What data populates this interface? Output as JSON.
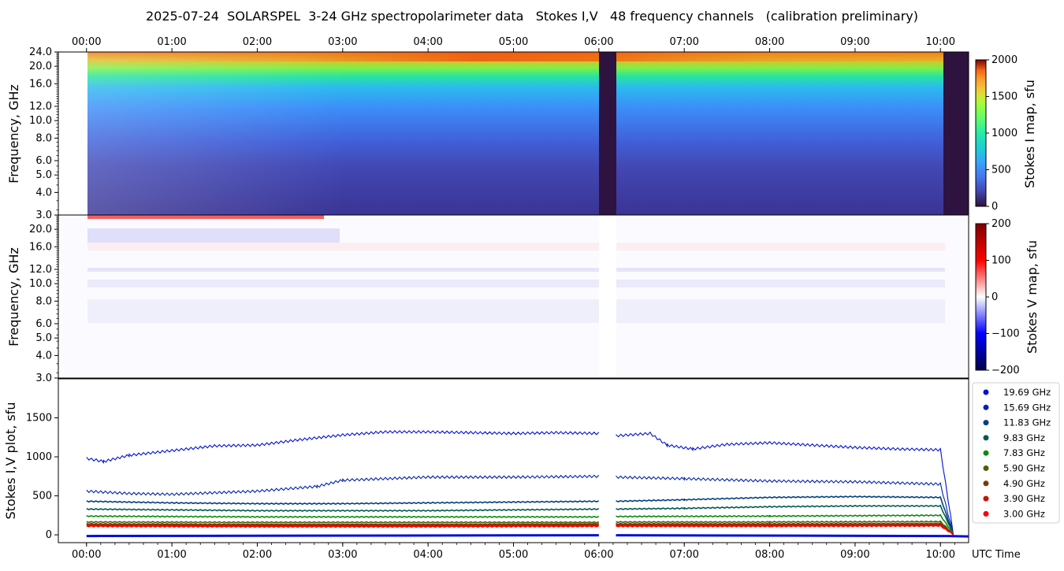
{
  "title": "2025-07-24  SOLARSPEL  3-24 GHz spectropolarimeter data   Stokes I,V   48 frequency channels   (calibration preliminary)",
  "chart_data": [
    {
      "type": "heatmap",
      "name": "stokes-i-map",
      "ylabel": "Frequency, GHz",
      "x_ticks_top": [
        "00:00",
        "01:00",
        "02:00",
        "03:00",
        "04:00",
        "05:00",
        "06:00",
        "07:00",
        "08:00",
        "09:00",
        "10:00"
      ],
      "y_ticks": [
        "3.0",
        "4.0",
        "5.0",
        "6.0",
        "8.0",
        "10.0",
        "12.0",
        "16.0",
        "20.0",
        "24.0"
      ],
      "y_tick_values": [
        3.0,
        4.0,
        5.0,
        6.0,
        8.0,
        10.0,
        12.0,
        16.0,
        20.0,
        24.0
      ],
      "ylim": [
        3.0,
        24.0
      ],
      "colorbar": {
        "label": "Stokes I map, sfu",
        "ticks": [
          "0",
          "500",
          "1000",
          "1500",
          "2000"
        ],
        "range": [
          0,
          2000
        ],
        "colormap": "turbo"
      },
      "data_gaps_utc": [
        [
          "06:00",
          "06:12"
        ]
      ],
      "data_end_utc": "10:02"
    },
    {
      "type": "heatmap",
      "name": "stokes-v-map",
      "ylabel": "Frequency, GHz",
      "y_ticks": [
        "3.0",
        "4.0",
        "5.0",
        "6.0",
        "8.0",
        "10.0",
        "12.0",
        "16.0",
        "20.0"
      ],
      "y_tick_values": [
        3.0,
        4.0,
        5.0,
        6.0,
        8.0,
        10.0,
        12.0,
        16.0,
        20.0
      ],
      "ylim": [
        3.0,
        24.0
      ],
      "colorbar": {
        "label": "Stokes V map, sfu",
        "ticks": [
          "200",
          "100",
          "0",
          "−100",
          "−200"
        ],
        "range": [
          -200,
          200
        ],
        "colormap": "seismic"
      }
    },
    {
      "type": "scatter",
      "name": "stokes-plot",
      "ylabel": "Stokes I,V plot, sfu",
      "xlabel": "UTC Time",
      "x_ticks": [
        "00:00",
        "01:00",
        "02:00",
        "03:00",
        "04:00",
        "05:00",
        "06:00",
        "07:00",
        "08:00",
        "09:00",
        "10:00"
      ],
      "y_ticks": [
        "0",
        "500",
        "1000",
        "1500"
      ],
      "ylim": [
        -100,
        2000
      ],
      "xlim_hours": [
        -0.33,
        10.33
      ],
      "series": [
        {
          "name": "19.69 GHz",
          "color": "#0010d8",
          "x": [
            0,
            0.2,
            0.5,
            1.0,
            1.5,
            2.0,
            2.5,
            3.0,
            3.5,
            4.0,
            4.5,
            5.0,
            5.5,
            6.0,
            6.2,
            6.6,
            6.8,
            7.1,
            7.5,
            8.0,
            8.5,
            9.0,
            9.5,
            10.0,
            10.15
          ],
          "y": [
            980,
            940,
            1020,
            1080,
            1140,
            1150,
            1220,
            1280,
            1320,
            1320,
            1310,
            1300,
            1310,
            1300,
            1270,
            1300,
            1150,
            1100,
            1160,
            1180,
            1150,
            1120,
            1100,
            1090,
            20
          ]
        },
        {
          "name": "15.69 GHz",
          "color": "#0022b0",
          "x": [
            0,
            0.5,
            1.0,
            2.0,
            2.7,
            3.0,
            4.0,
            5.0,
            6.0,
            6.2,
            7.0,
            8.0,
            9.0,
            10.0,
            10.15
          ],
          "y": [
            560,
            530,
            520,
            560,
            620,
            700,
            740,
            740,
            750,
            740,
            720,
            690,
            680,
            650,
            10
          ]
        },
        {
          "name": "11.83 GHz",
          "color": "#004080",
          "x": [
            0,
            1.0,
            2.0,
            3.0,
            4.0,
            5.0,
            6.0,
            6.2,
            7.0,
            8.0,
            9.0,
            10.0,
            10.15
          ],
          "y": [
            430,
            410,
            400,
            400,
            410,
            420,
            430,
            430,
            450,
            480,
            490,
            480,
            10
          ]
        },
        {
          "name": "9.83 GHz",
          "color": "#005a50",
          "x": [
            0,
            1.0,
            2.0,
            3.0,
            4.0,
            5.0,
            6.0,
            6.2,
            7.0,
            8.0,
            9.0,
            10.0,
            10.15
          ],
          "y": [
            330,
            320,
            310,
            310,
            310,
            320,
            330,
            330,
            340,
            360,
            370,
            370,
            10
          ]
        },
        {
          "name": "7.83 GHz",
          "color": "#0a8a0a",
          "x": [
            0,
            2.0,
            4.0,
            6.0,
            6.2,
            8.0,
            10.0,
            10.15
          ],
          "y": [
            240,
            230,
            230,
            230,
            235,
            240,
            250,
            10
          ]
        },
        {
          "name": "5.90 GHz",
          "color": "#4a6000",
          "x": [
            0,
            2.0,
            4.0,
            6.0,
            6.2,
            8.0,
            10.0,
            10.15
          ],
          "y": [
            165,
            160,
            160,
            160,
            165,
            165,
            170,
            10
          ]
        },
        {
          "name": "4.90 GHz",
          "color": "#7a3800",
          "x": [
            0,
            2.0,
            4.0,
            6.0,
            6.2,
            8.0,
            10.0,
            10.15
          ],
          "y": [
            140,
            135,
            135,
            140,
            140,
            140,
            145,
            10
          ]
        },
        {
          "name": "3.90 GHz",
          "color": "#c01800",
          "x": [
            0,
            2.0,
            4.0,
            6.0,
            6.2,
            8.0,
            10.0,
            10.15
          ],
          "y": [
            125,
            120,
            120,
            125,
            125,
            125,
            130,
            10
          ]
        },
        {
          "name": "3.00 GHz",
          "color": "#ff0000",
          "x": [
            0,
            2.0,
            4.0,
            6.0,
            6.2,
            8.0,
            10.0,
            10.15
          ],
          "y": [
            110,
            105,
            105,
            110,
            110,
            110,
            115,
            5
          ]
        }
      ]
    }
  ]
}
